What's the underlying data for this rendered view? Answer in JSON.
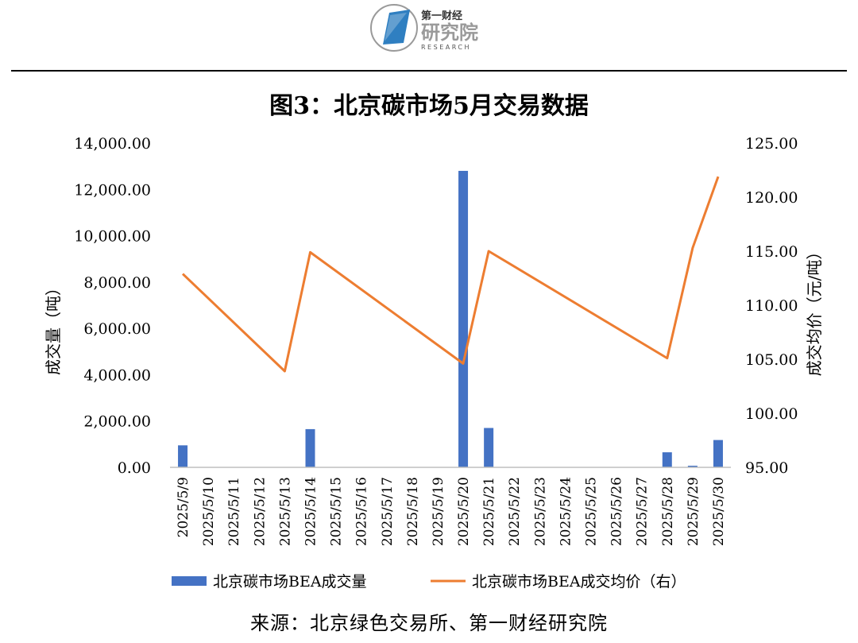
{
  "header": {
    "logo_line1": "第一财经",
    "logo_line2": "研究院",
    "logo_line3": "RESEARCH",
    "colors": {
      "logo_blue": "#2f7fc1",
      "logo_gray": "#9a9a9a"
    }
  },
  "chart_data": {
    "type": "bar+line",
    "title": "图3：北京碳市场5月交易数据",
    "categories": [
      "2025/5/9",
      "2025/5/10",
      "2025/5/11",
      "2025/5/12",
      "2025/5/13",
      "2025/5/14",
      "2025/5/15",
      "2025/5/16",
      "2025/5/17",
      "2025/5/18",
      "2025/5/19",
      "2025/5/20",
      "2025/5/21",
      "2025/5/22",
      "2025/5/23",
      "2025/5/24",
      "2025/5/25",
      "2025/5/26",
      "2025/5/27",
      "2025/5/28",
      "2025/5/29",
      "2025/5/30"
    ],
    "series": [
      {
        "name": "北京碳市场BEA成交量",
        "type": "bar",
        "axis": "left",
        "color": "#4472c4",
        "values": [
          950,
          0,
          0,
          0,
          0,
          1650,
          0,
          0,
          0,
          0,
          0,
          12800,
          1700,
          0,
          0,
          0,
          0,
          0,
          0,
          650,
          70,
          1180
        ]
      },
      {
        "name": "北京碳市场BEA成交均价（右）",
        "type": "line",
        "axis": "right",
        "color": "#ed7d31",
        "points": [
          {
            "x": "2025/5/9",
            "y": 112.9
          },
          {
            "x": "2025/5/13",
            "y": 103.9
          },
          {
            "x": "2025/5/14",
            "y": 114.9
          },
          {
            "x": "2025/5/20",
            "y": 104.6
          },
          {
            "x": "2025/5/21",
            "y": 115.0
          },
          {
            "x": "2025/5/28",
            "y": 105.1
          },
          {
            "x": "2025/5/29",
            "y": 115.3
          },
          {
            "x": "2025/5/30",
            "y": 121.9
          }
        ]
      }
    ],
    "y_left": {
      "label": "成交量（吨）",
      "range": [
        0,
        14000
      ],
      "ticks": [
        "0.00",
        "2,000.00",
        "4,000.00",
        "6,000.00",
        "8,000.00",
        "10,000.00",
        "12,000.00",
        "14,000.00"
      ]
    },
    "y_right": {
      "label": "成交均价（元/吨）",
      "range": [
        95,
        125
      ],
      "ticks": [
        "95.00",
        "100.00",
        "105.00",
        "110.00",
        "115.00",
        "120.00",
        "125.00"
      ]
    },
    "grid": false,
    "legend_position": "bottom"
  },
  "source": "来源：北京绿色交易所、第一财经研究院"
}
